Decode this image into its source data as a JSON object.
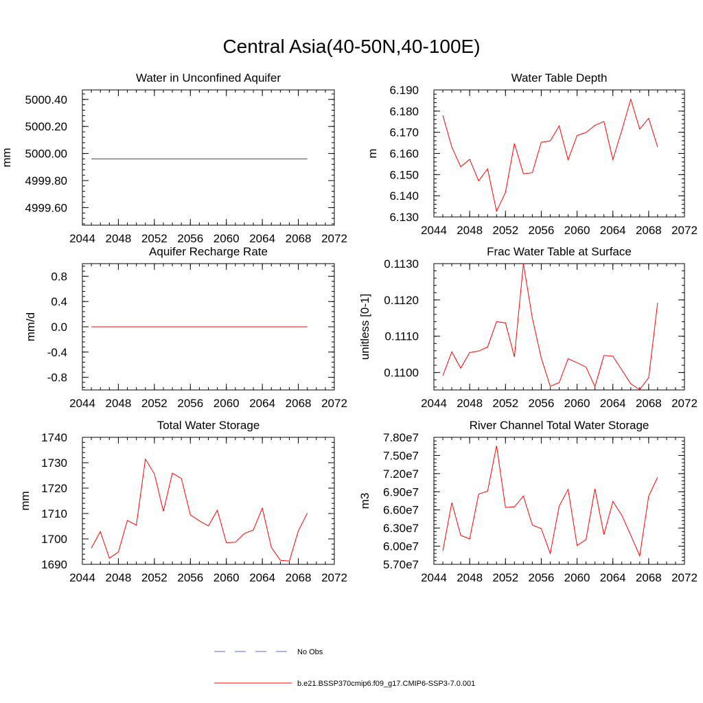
{
  "page_title": "Central Asia(40-50N,40-100E)",
  "legend": {
    "items": [
      {
        "label": "No Obs",
        "style": "dashed",
        "color": "#5c6ab8"
      },
      {
        "label": "b.e21.BSSP370cmip6.f09_g17.CMIP6-SSP3-7.0.001",
        "style": "solid",
        "color": "#ff0000"
      }
    ]
  },
  "chart_data": [
    {
      "type": "line",
      "title": "Water in Unconfined Aquifer",
      "xlabel": "",
      "ylabel": "mm",
      "xlim": [
        2044,
        2072
      ],
      "ylim": [
        4999.47,
        5000.47
      ],
      "xticks": [
        2044,
        2048,
        2052,
        2056,
        2060,
        2064,
        2068,
        2072
      ],
      "xtick_labels": [
        "2044",
        "2048",
        "2052",
        "2056",
        "2060",
        "2064",
        "2068",
        "2072"
      ],
      "yticks": [
        4999.6,
        4999.8,
        5000.0,
        5000.2,
        5000.4
      ],
      "ytick_labels": [
        "4999.60",
        "4999.80",
        "5000.00",
        "5000.20",
        "5000.40"
      ],
      "series": [
        {
          "color": "#ff0000",
          "x": [
            2045,
            2046,
            2047,
            2048,
            2049,
            2050,
            2051,
            2052,
            2053,
            2054,
            2055,
            2056,
            2057,
            2058,
            2059,
            2060,
            2061,
            2062,
            2063,
            2064,
            2065,
            2066,
            2067,
            2068,
            2069
          ],
          "y": [
            4999.96,
            4999.96,
            4999.96,
            4999.96,
            4999.96,
            4999.96,
            4999.96,
            4999.96,
            4999.96,
            4999.96,
            4999.96,
            4999.96,
            4999.96,
            4999.96,
            4999.96,
            4999.96,
            4999.96,
            4999.96,
            4999.96,
            4999.96,
            4999.96,
            4999.96,
            4999.96,
            4999.96,
            4999.96
          ]
        }
      ]
    },
    {
      "type": "line",
      "title": "Water Table Depth",
      "xlabel": "",
      "ylabel": "m",
      "xlim": [
        2044,
        2072
      ],
      "ylim": [
        6.13,
        6.19
      ],
      "xticks": [
        2044,
        2048,
        2052,
        2056,
        2060,
        2064,
        2068,
        2072
      ],
      "xtick_labels": [
        "2044",
        "2048",
        "2052",
        "2056",
        "2060",
        "2064",
        "2068",
        "2072"
      ],
      "yticks": [
        6.13,
        6.14,
        6.15,
        6.16,
        6.17,
        6.18,
        6.19
      ],
      "ytick_labels": [
        "6.130",
        "6.140",
        "6.150",
        "6.160",
        "6.170",
        "6.180",
        "6.190"
      ],
      "series": [
        {
          "color": "#ff0000",
          "x": [
            2045,
            2046,
            2047,
            2048,
            2049,
            2050,
            2051,
            2052,
            2053,
            2054,
            2055,
            2056,
            2057,
            2058,
            2059,
            2060,
            2061,
            2062,
            2063,
            2064,
            2065,
            2066,
            2067,
            2068,
            2069
          ],
          "y": [
            6.178,
            6.163,
            6.1537,
            6.1572,
            6.147,
            6.1527,
            6.1327,
            6.1416,
            6.1647,
            6.1504,
            6.1509,
            6.1653,
            6.1659,
            6.173,
            6.157,
            6.1685,
            6.1699,
            6.1733,
            6.1751,
            6.1571,
            6.171,
            6.1856,
            6.1715,
            6.1766,
            6.163
          ]
        }
      ]
    },
    {
      "type": "line",
      "title": "Aquifer Recharge Rate",
      "xlabel": "",
      "ylabel": "mm/d",
      "xlim": [
        2044,
        2072
      ],
      "ylim": [
        -1.0,
        1.0
      ],
      "xticks": [
        2044,
        2048,
        2052,
        2056,
        2060,
        2064,
        2068,
        2072
      ],
      "xtick_labels": [
        "2044",
        "2048",
        "2052",
        "2056",
        "2060",
        "2064",
        "2068",
        "2072"
      ],
      "yticks": [
        -0.8,
        -0.4,
        0.0,
        0.4,
        0.8
      ],
      "ytick_labels": [
        "-0.8",
        "-0.4",
        "0.0",
        "0.4",
        "0.8"
      ],
      "series": [
        {
          "color": "#ff0000",
          "x": [
            2045,
            2046,
            2047,
            2048,
            2049,
            2050,
            2051,
            2052,
            2053,
            2054,
            2055,
            2056,
            2057,
            2058,
            2059,
            2060,
            2061,
            2062,
            2063,
            2064,
            2065,
            2066,
            2067,
            2068,
            2069
          ],
          "y": [
            0,
            0,
            0,
            0,
            0,
            0,
            0,
            0,
            0,
            0,
            0,
            0,
            0,
            0,
            0,
            0,
            0,
            0,
            0,
            0,
            0,
            0,
            0,
            0,
            0
          ]
        }
      ]
    },
    {
      "type": "line",
      "title": "Frac Water Table at Surface",
      "xlabel": "",
      "ylabel": "unitless [0-1]",
      "xlim": [
        2044,
        2072
      ],
      "ylim": [
        0.10952,
        0.113
      ],
      "xticks": [
        2044,
        2048,
        2052,
        2056,
        2060,
        2064,
        2068,
        2072
      ],
      "xtick_labels": [
        "2044",
        "2048",
        "2052",
        "2056",
        "2060",
        "2064",
        "2068",
        "2072"
      ],
      "yticks": [
        0.11,
        0.111,
        0.112,
        0.113
      ],
      "ytick_labels": [
        "0.1100",
        "0.1110",
        "0.1120",
        "0.1130"
      ],
      "series": [
        {
          "color": "#ff0000",
          "x": [
            2045,
            2046,
            2047,
            2048,
            2049,
            2050,
            2051,
            2052,
            2053,
            2054,
            2055,
            2056,
            2057,
            2058,
            2059,
            2060,
            2061,
            2062,
            2063,
            2064,
            2065,
            2066,
            2067,
            2068,
            2069
          ],
          "y": [
            0.10991,
            0.11057,
            0.11012,
            0.11055,
            0.11059,
            0.1107,
            0.1114,
            0.11137,
            0.11043,
            0.113,
            0.1115,
            0.1104,
            0.10962,
            0.10972,
            0.11038,
            0.11027,
            0.11015,
            0.10961,
            0.11047,
            0.11045,
            0.11007,
            0.10969,
            0.10953,
            0.10986,
            0.11192
          ]
        }
      ]
    },
    {
      "type": "line",
      "title": "Total Water Storage",
      "xlabel": "",
      "ylabel": "mm",
      "xlim": [
        2044,
        2072
      ],
      "ylim": [
        1690,
        1740
      ],
      "xticks": [
        2044,
        2048,
        2052,
        2056,
        2060,
        2064,
        2068,
        2072
      ],
      "xtick_labels": [
        "2044",
        "2048",
        "2052",
        "2056",
        "2060",
        "2064",
        "2068",
        "2072"
      ],
      "yticks": [
        1690,
        1700,
        1710,
        1720,
        1730,
        1740
      ],
      "ytick_labels": [
        "1690",
        "1700",
        "1710",
        "1720",
        "1730",
        "1740"
      ],
      "series": [
        {
          "color": "#ff0000",
          "x": [
            2045,
            2046,
            2047,
            2048,
            2049,
            2050,
            2051,
            2052,
            2053,
            2054,
            2055,
            2056,
            2057,
            2058,
            2059,
            2060,
            2061,
            2062,
            2063,
            2064,
            2065,
            2066,
            2067,
            2068,
            2069
          ],
          "y": [
            1696.4,
            1702.9,
            1692.4,
            1694.8,
            1707.3,
            1705.4,
            1731.4,
            1725.6,
            1710.9,
            1725.9,
            1723.8,
            1709.5,
            1707.1,
            1705.1,
            1711.3,
            1698.5,
            1698.7,
            1702.1,
            1703.5,
            1712.1,
            1696.6,
            1691.6,
            1691.3,
            1703.2,
            1710.2
          ]
        }
      ]
    },
    {
      "type": "line",
      "title": "River Channel Total Water Storage",
      "xlabel": "",
      "ylabel": "m3",
      "xlim": [
        2044,
        2072
      ],
      "ylim": [
        57000000,
        78000000
      ],
      "xticks": [
        2044,
        2048,
        2052,
        2056,
        2060,
        2064,
        2068,
        2072
      ],
      "xtick_labels": [
        "2044",
        "2048",
        "2052",
        "2056",
        "2060",
        "2064",
        "2068",
        "2072"
      ],
      "yticks": [
        57000000,
        60000000,
        63000000,
        66000000,
        69000000,
        72000000,
        75000000,
        78000000
      ],
      "ytick_labels": [
        "5.70e7",
        "6.00e7",
        "6.30e7",
        "6.60e7",
        "6.90e7",
        "7.20e7",
        "7.50e7",
        "7.80e7"
      ],
      "series": [
        {
          "color": "#ff0000",
          "x": [
            2045,
            2046,
            2047,
            2048,
            2049,
            2050,
            2051,
            2052,
            2053,
            2054,
            2055,
            2056,
            2057,
            2058,
            2059,
            2060,
            2061,
            2062,
            2063,
            2064,
            2065,
            2066,
            2067,
            2068,
            2069
          ],
          "y": [
            59200000,
            67200000,
            61800000,
            61200000,
            68600000,
            69100000,
            76600000,
            66400000,
            66500000,
            68300000,
            63500000,
            62900000,
            58800000,
            66600000,
            69400000,
            60100000,
            61100000,
            69500000,
            61900000,
            67400000,
            65100000,
            61800000,
            58400000,
            68300000,
            71400000
          ]
        }
      ]
    }
  ]
}
